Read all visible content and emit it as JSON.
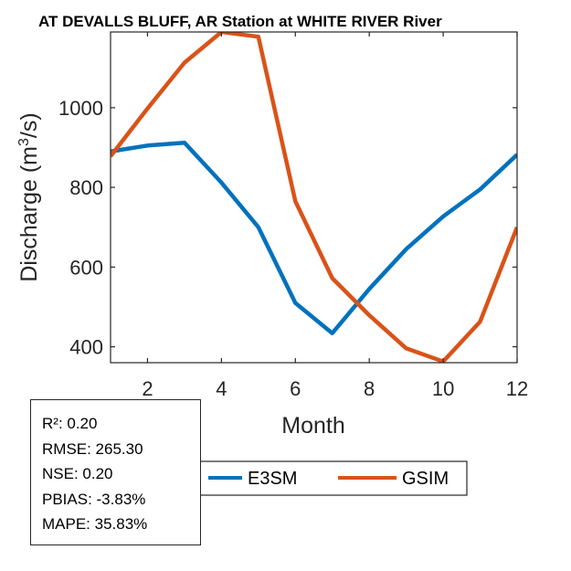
{
  "chart_data": {
    "type": "line",
    "title": "AT DEVALLS BLUFF, AR  Station at  WHITE RIVER  River",
    "xlabel": "Month",
    "ylabel": "Discharge (m",
    "ylabel_sup": "3",
    "ylabel_tail": "/s)",
    "xlim": [
      1,
      12
    ],
    "ylim": [
      360,
      1190
    ],
    "x": [
      1,
      2,
      3,
      4,
      5,
      6,
      7,
      8,
      9,
      10,
      11,
      12
    ],
    "x_ticks": [
      2,
      4,
      6,
      8,
      10,
      12
    ],
    "y_ticks": [
      400,
      600,
      800,
      1000
    ],
    "series": [
      {
        "name": "E3SM",
        "color": "#0072BD",
        "values": [
          890,
          905,
          912,
          812,
          700,
          510,
          434,
          545,
          645,
          727,
          795,
          882
        ]
      },
      {
        "name": "GSIM",
        "color": "#D95319",
        "values": [
          878,
          998,
          1113,
          1190,
          1178,
          765,
          572,
          479,
          396,
          363,
          463,
          700
        ]
      }
    ]
  },
  "stats": {
    "r2": "R²: 0.20",
    "rmse": "RMSE: 265.30",
    "nse": "NSE: 0.20",
    "pbias": "PBIAS: -3.83%",
    "mape": "MAPE: 35.83%"
  }
}
